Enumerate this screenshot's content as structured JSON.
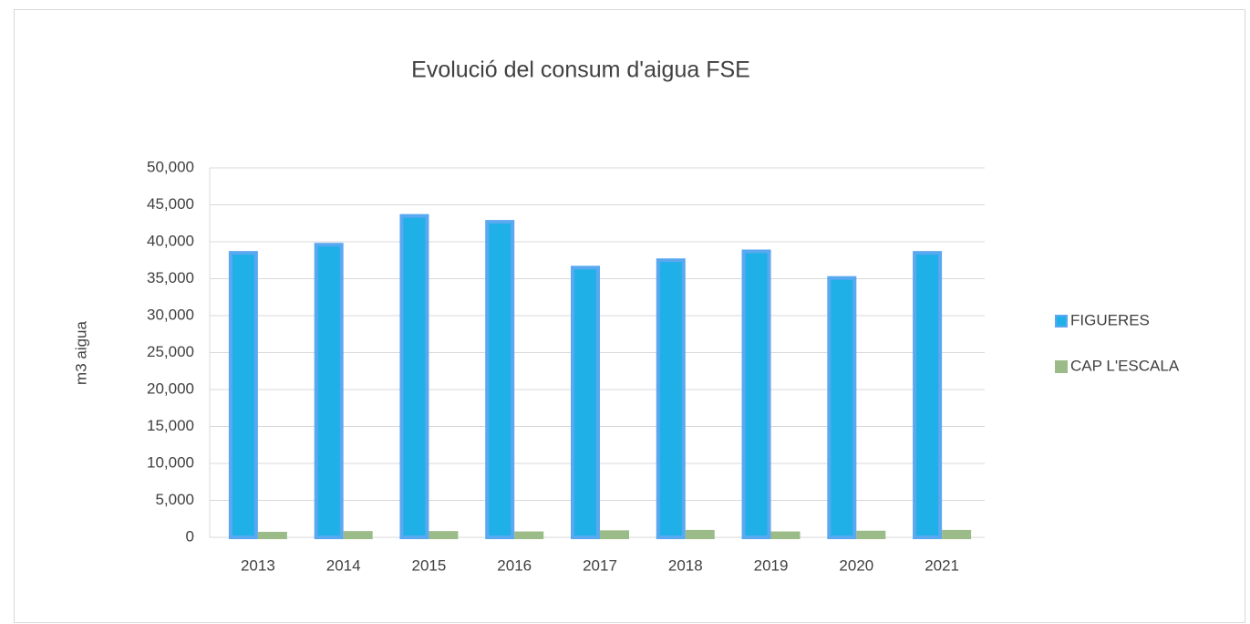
{
  "chart_data": {
    "type": "bar",
    "title": "Evolució del consum d'aigua FSE",
    "y_label": "m3 aigua",
    "categories": [
      "2013",
      "2014",
      "2015",
      "2016",
      "2017",
      "2018",
      "2019",
      "2020",
      "2021"
    ],
    "series": [
      {
        "name": "FIGUERES",
        "color": "#1fb0e8",
        "values": [
          38500,
          39600,
          43500,
          42700,
          36500,
          37500,
          38700,
          35100,
          38500
        ]
      },
      {
        "name": "CAP L'ESCALA",
        "color": "#9bbb88",
        "values": [
          500,
          600,
          600,
          550,
          700,
          750,
          550,
          650,
          750
        ]
      }
    ],
    "ylim": [
      0,
      50000
    ],
    "yticks": [
      0,
      {
        "value": 5000,
        "label": "5,000"
      },
      {
        "value": 10000,
        "label": "10,000"
      },
      {
        "value": 15000,
        "label": "15,000"
      },
      {
        "value": 20000,
        "label": "20,000"
      },
      {
        "value": 25000,
        "label": "25,000"
      },
      {
        "value": 30000,
        "label": "30,000"
      },
      {
        "value": 35000,
        "label": "35,000"
      },
      {
        "value": 40000,
        "label": "40,000"
      },
      {
        "value": 45000,
        "label": "45,000"
      },
      {
        "value": 50000,
        "label": "50,000"
      }
    ],
    "grid": true,
    "legend": "right"
  }
}
